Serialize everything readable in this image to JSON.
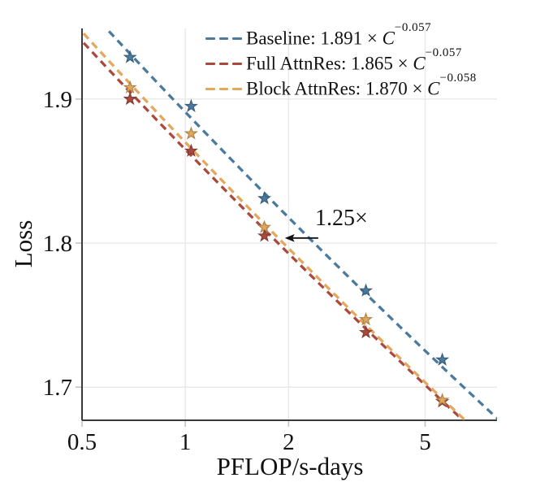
{
  "chart_data": {
    "type": "line",
    "title": "",
    "xlabel": "PFLOP/s-days",
    "ylabel": "Loss",
    "x_scale": "log",
    "y_scale": "linear",
    "xlim": [
      0.5,
      8.1
    ],
    "ylim": [
      1.677,
      1.949
    ],
    "x_ticks": [
      0.5,
      1,
      2,
      5
    ],
    "x_tick_labels": [
      "0.5",
      "1",
      "2",
      "5"
    ],
    "y_ticks": [
      1.7,
      1.8,
      1.9
    ],
    "y_tick_labels": [
      "1.7",
      "1.8",
      "1.9"
    ],
    "grid": true,
    "legend": {
      "frame": false,
      "position": "upper-center-inside",
      "variable": "C"
    },
    "series": [
      {
        "name": "Baseline",
        "coefficient": "1.891",
        "exponent": "−0.057",
        "fit_a": 1.891,
        "fit_b": -0.057,
        "color": "#4a7a9d",
        "line_style": "dashed",
        "marker": "star",
        "x": [
          0.69,
          1.04,
          1.7,
          3.36,
          5.61
        ],
        "y": [
          1.929,
          1.895,
          1.831,
          1.767,
          1.719
        ]
      },
      {
        "name": "Full AttnRes",
        "coefficient": "1.865",
        "exponent": "−0.057",
        "fit_a": 1.865,
        "fit_b": -0.057,
        "color": "#aa4a3e",
        "line_style": "dashed",
        "marker": "star",
        "x": [
          0.69,
          1.04,
          1.7,
          3.36,
          5.61
        ],
        "y": [
          1.9,
          1.864,
          1.805,
          1.738,
          1.69
        ]
      },
      {
        "name": "Block AttnRes",
        "coefficient": "1.870",
        "exponent": "−0.058",
        "fit_a": 1.87,
        "fit_b": -0.058,
        "color": "#e2a85e",
        "line_style": "dashed",
        "marker": "star",
        "x": [
          0.69,
          1.04,
          1.7,
          3.36,
          5.61
        ],
        "y": [
          1.908,
          1.876,
          1.811,
          1.747,
          1.691
        ]
      }
    ],
    "annotation": {
      "text": "1.25×",
      "text_x": 2.85,
      "text_y": 1.818,
      "arrow_y": 1.8035,
      "arrow_x_tail": 2.44,
      "arrow_x_head": 1.95
    },
    "colors": {
      "axis": "#3a3a3a",
      "grid": "#e8e8e8",
      "tick": "#c4c4c4",
      "text": "#111111",
      "background": "#ffffff"
    }
  }
}
